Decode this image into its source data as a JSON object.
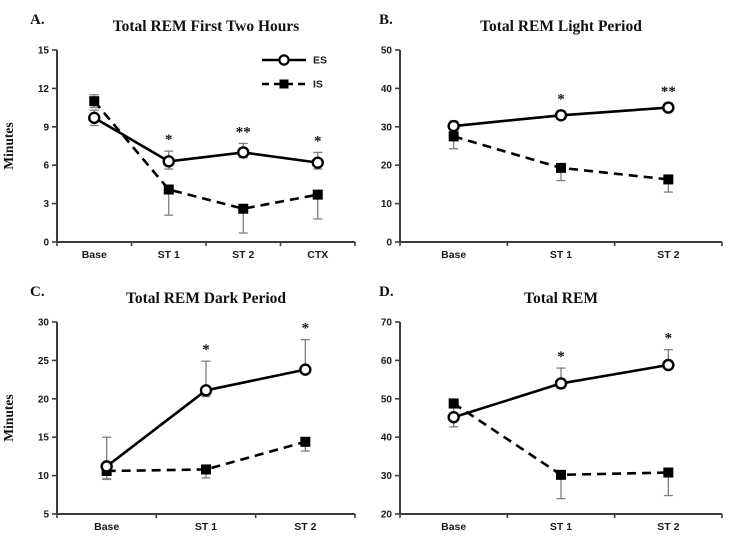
{
  "figure": {
    "background": "#ffffff",
    "colors": {
      "series_line": "#000000",
      "marker_fill": "#000000",
      "open_marker_fill": "#ffffff",
      "error_bar": "#7f7f7f",
      "axis": "#3d3d3d",
      "text": "#1a1a1a"
    }
  },
  "legend": {
    "entries": [
      {
        "label": "ES",
        "marker": "open-circle",
        "line": "solid"
      },
      {
        "label": "IS",
        "marker": "filled-square",
        "line": "dashed"
      }
    ]
  },
  "chart_data": [
    {
      "type": "line",
      "panel_letter": "A.",
      "title": "Total REM First Two Hours",
      "ylabel": "Minutes",
      "categories": [
        "Base",
        "ST 1",
        "ST 2",
        "CTX"
      ],
      "ylim": [
        0,
        15
      ],
      "ystep": 3,
      "show_legend": true,
      "series": [
        {
          "name": "ES",
          "marker": "open-circle",
          "line": "solid",
          "values": [
            9.7,
            6.3,
            7.0,
            6.2
          ],
          "err_up": [
            0.6,
            0.8,
            0.7,
            0.8
          ],
          "err_down": [
            0.6,
            0.6,
            0.4,
            0.5
          ]
        },
        {
          "name": "IS",
          "marker": "filled-square",
          "line": "dashed",
          "values": [
            11.0,
            4.1,
            2.6,
            3.7
          ],
          "err_up": [
            0.5,
            0,
            0,
            0
          ],
          "err_down": [
            0.5,
            2.0,
            1.9,
            1.9
          ]
        }
      ],
      "significance": [
        {
          "category_index": 1,
          "symbol": "*"
        },
        {
          "category_index": 2,
          "symbol": "**"
        },
        {
          "category_index": 3,
          "symbol": "*"
        }
      ]
    },
    {
      "type": "line",
      "panel_letter": "B.",
      "title": "Total REM Light Period",
      "ylabel": "",
      "categories": [
        "Base",
        "ST 1",
        "ST 2"
      ],
      "ylim": [
        0,
        50
      ],
      "ystep": 10,
      "show_legend": false,
      "series": [
        {
          "name": "ES",
          "marker": "open-circle",
          "line": "solid",
          "values": [
            30.2,
            33.0,
            35.0
          ],
          "err_up": [
            1.3,
            1.2,
            1.2
          ],
          "err_down": [
            1.3,
            1.0,
            1.0
          ]
        },
        {
          "name": "IS",
          "marker": "filled-square",
          "line": "dashed",
          "values": [
            27.5,
            19.3,
            16.3
          ],
          "err_up": [
            1.0,
            0,
            0
          ],
          "err_down": [
            3.2,
            3.3,
            3.3
          ]
        }
      ],
      "significance": [
        {
          "category_index": 1,
          "symbol": "*"
        },
        {
          "category_index": 2,
          "symbol": "**"
        }
      ]
    },
    {
      "type": "line",
      "panel_letter": "C.",
      "title": "Total REM Dark Period",
      "ylabel": "Minutes",
      "categories": [
        "Base",
        "ST 1",
        "ST 2"
      ],
      "ylim": [
        5,
        30
      ],
      "ystep": 5,
      "show_legend": false,
      "series": [
        {
          "name": "ES",
          "marker": "open-circle",
          "line": "solid",
          "values": [
            11.2,
            21.1,
            23.8
          ],
          "err_up": [
            3.8,
            3.8,
            3.9
          ],
          "err_down": [
            1.6,
            0.8,
            0.5
          ]
        },
        {
          "name": "IS",
          "marker": "filled-square",
          "line": "dashed",
          "values": [
            10.6,
            10.8,
            14.4
          ],
          "err_up": [
            0,
            0,
            0
          ],
          "err_down": [
            1.1,
            1.1,
            1.2
          ]
        }
      ],
      "significance": [
        {
          "category_index": 1,
          "symbol": "*"
        },
        {
          "category_index": 2,
          "symbol": "*"
        }
      ]
    },
    {
      "type": "line",
      "panel_letter": "D.",
      "title": "Total REM",
      "ylabel": "",
      "categories": [
        "Base",
        "ST 1",
        "ST 2"
      ],
      "ylim": [
        20,
        70
      ],
      "ystep": 10,
      "show_legend": false,
      "series": [
        {
          "name": "ES",
          "marker": "open-circle",
          "line": "solid",
          "values": [
            45.2,
            54.0,
            58.8
          ],
          "err_up": [
            2.4,
            4.0,
            4.0
          ],
          "err_down": [
            2.5,
            1.2,
            1.0
          ]
        },
        {
          "name": "IS",
          "marker": "filled-square",
          "line": "dashed",
          "values": [
            48.8,
            30.2,
            30.8
          ],
          "err_up": [
            1.0,
            0,
            0
          ],
          "err_down": [
            0.8,
            6.2,
            6.0
          ]
        }
      ],
      "significance": [
        {
          "category_index": 1,
          "symbol": "*"
        },
        {
          "category_index": 2,
          "symbol": "*"
        }
      ]
    }
  ]
}
